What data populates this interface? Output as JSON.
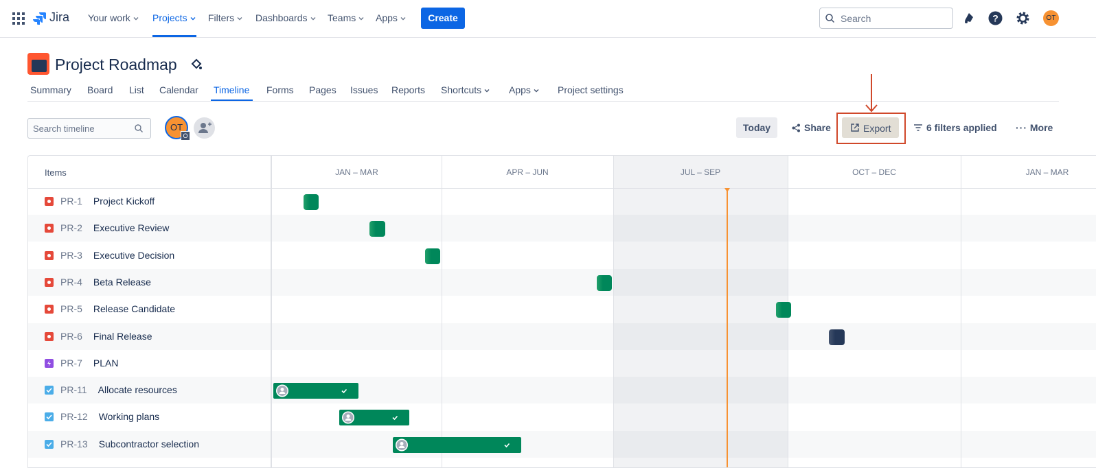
{
  "topnav": {
    "product": "Jira",
    "items": [
      "Your work",
      "Projects",
      "Filters",
      "Dashboards",
      "Teams",
      "Apps"
    ],
    "create": "Create",
    "search": "Search",
    "avatar": "OT"
  },
  "project": {
    "title": "Project Roadmap",
    "tabs": [
      "Summary",
      "Board",
      "List",
      "Calendar",
      "Timeline",
      "Forms",
      "Pages",
      "Issues",
      "Reports",
      "Shortcuts",
      "Apps",
      "Project settings"
    ]
  },
  "toolbar": {
    "search": "Search timeline",
    "avatar": "OT",
    "avatar_badge": "O",
    "today": "Today",
    "share": "Share",
    "export": "Export",
    "filters": "6 filters applied",
    "more": "More"
  },
  "timeline": {
    "items_header": "Items",
    "quarters": [
      "JAN – MAR",
      "APR – JUN",
      "JUL – SEP",
      "OCT – DEC",
      "JAN – MAR"
    ],
    "rows": [
      {
        "key": "PR-1",
        "title": "Project Kickoff"
      },
      {
        "key": "PR-2",
        "title": "Executive Review"
      },
      {
        "key": "PR-3",
        "title": "Executive Decision"
      },
      {
        "key": "PR-4",
        "title": "Beta Release"
      },
      {
        "key": "PR-5",
        "title": "Release Candidate"
      },
      {
        "key": "PR-6",
        "title": "Final Release"
      },
      {
        "key": "PR-7",
        "title": "PLAN"
      },
      {
        "key": "PR-11",
        "title": "Allocate resources"
      },
      {
        "key": "PR-12",
        "title": "Working plans"
      },
      {
        "key": "PR-13",
        "title": "Subcontractor selection"
      }
    ]
  }
}
